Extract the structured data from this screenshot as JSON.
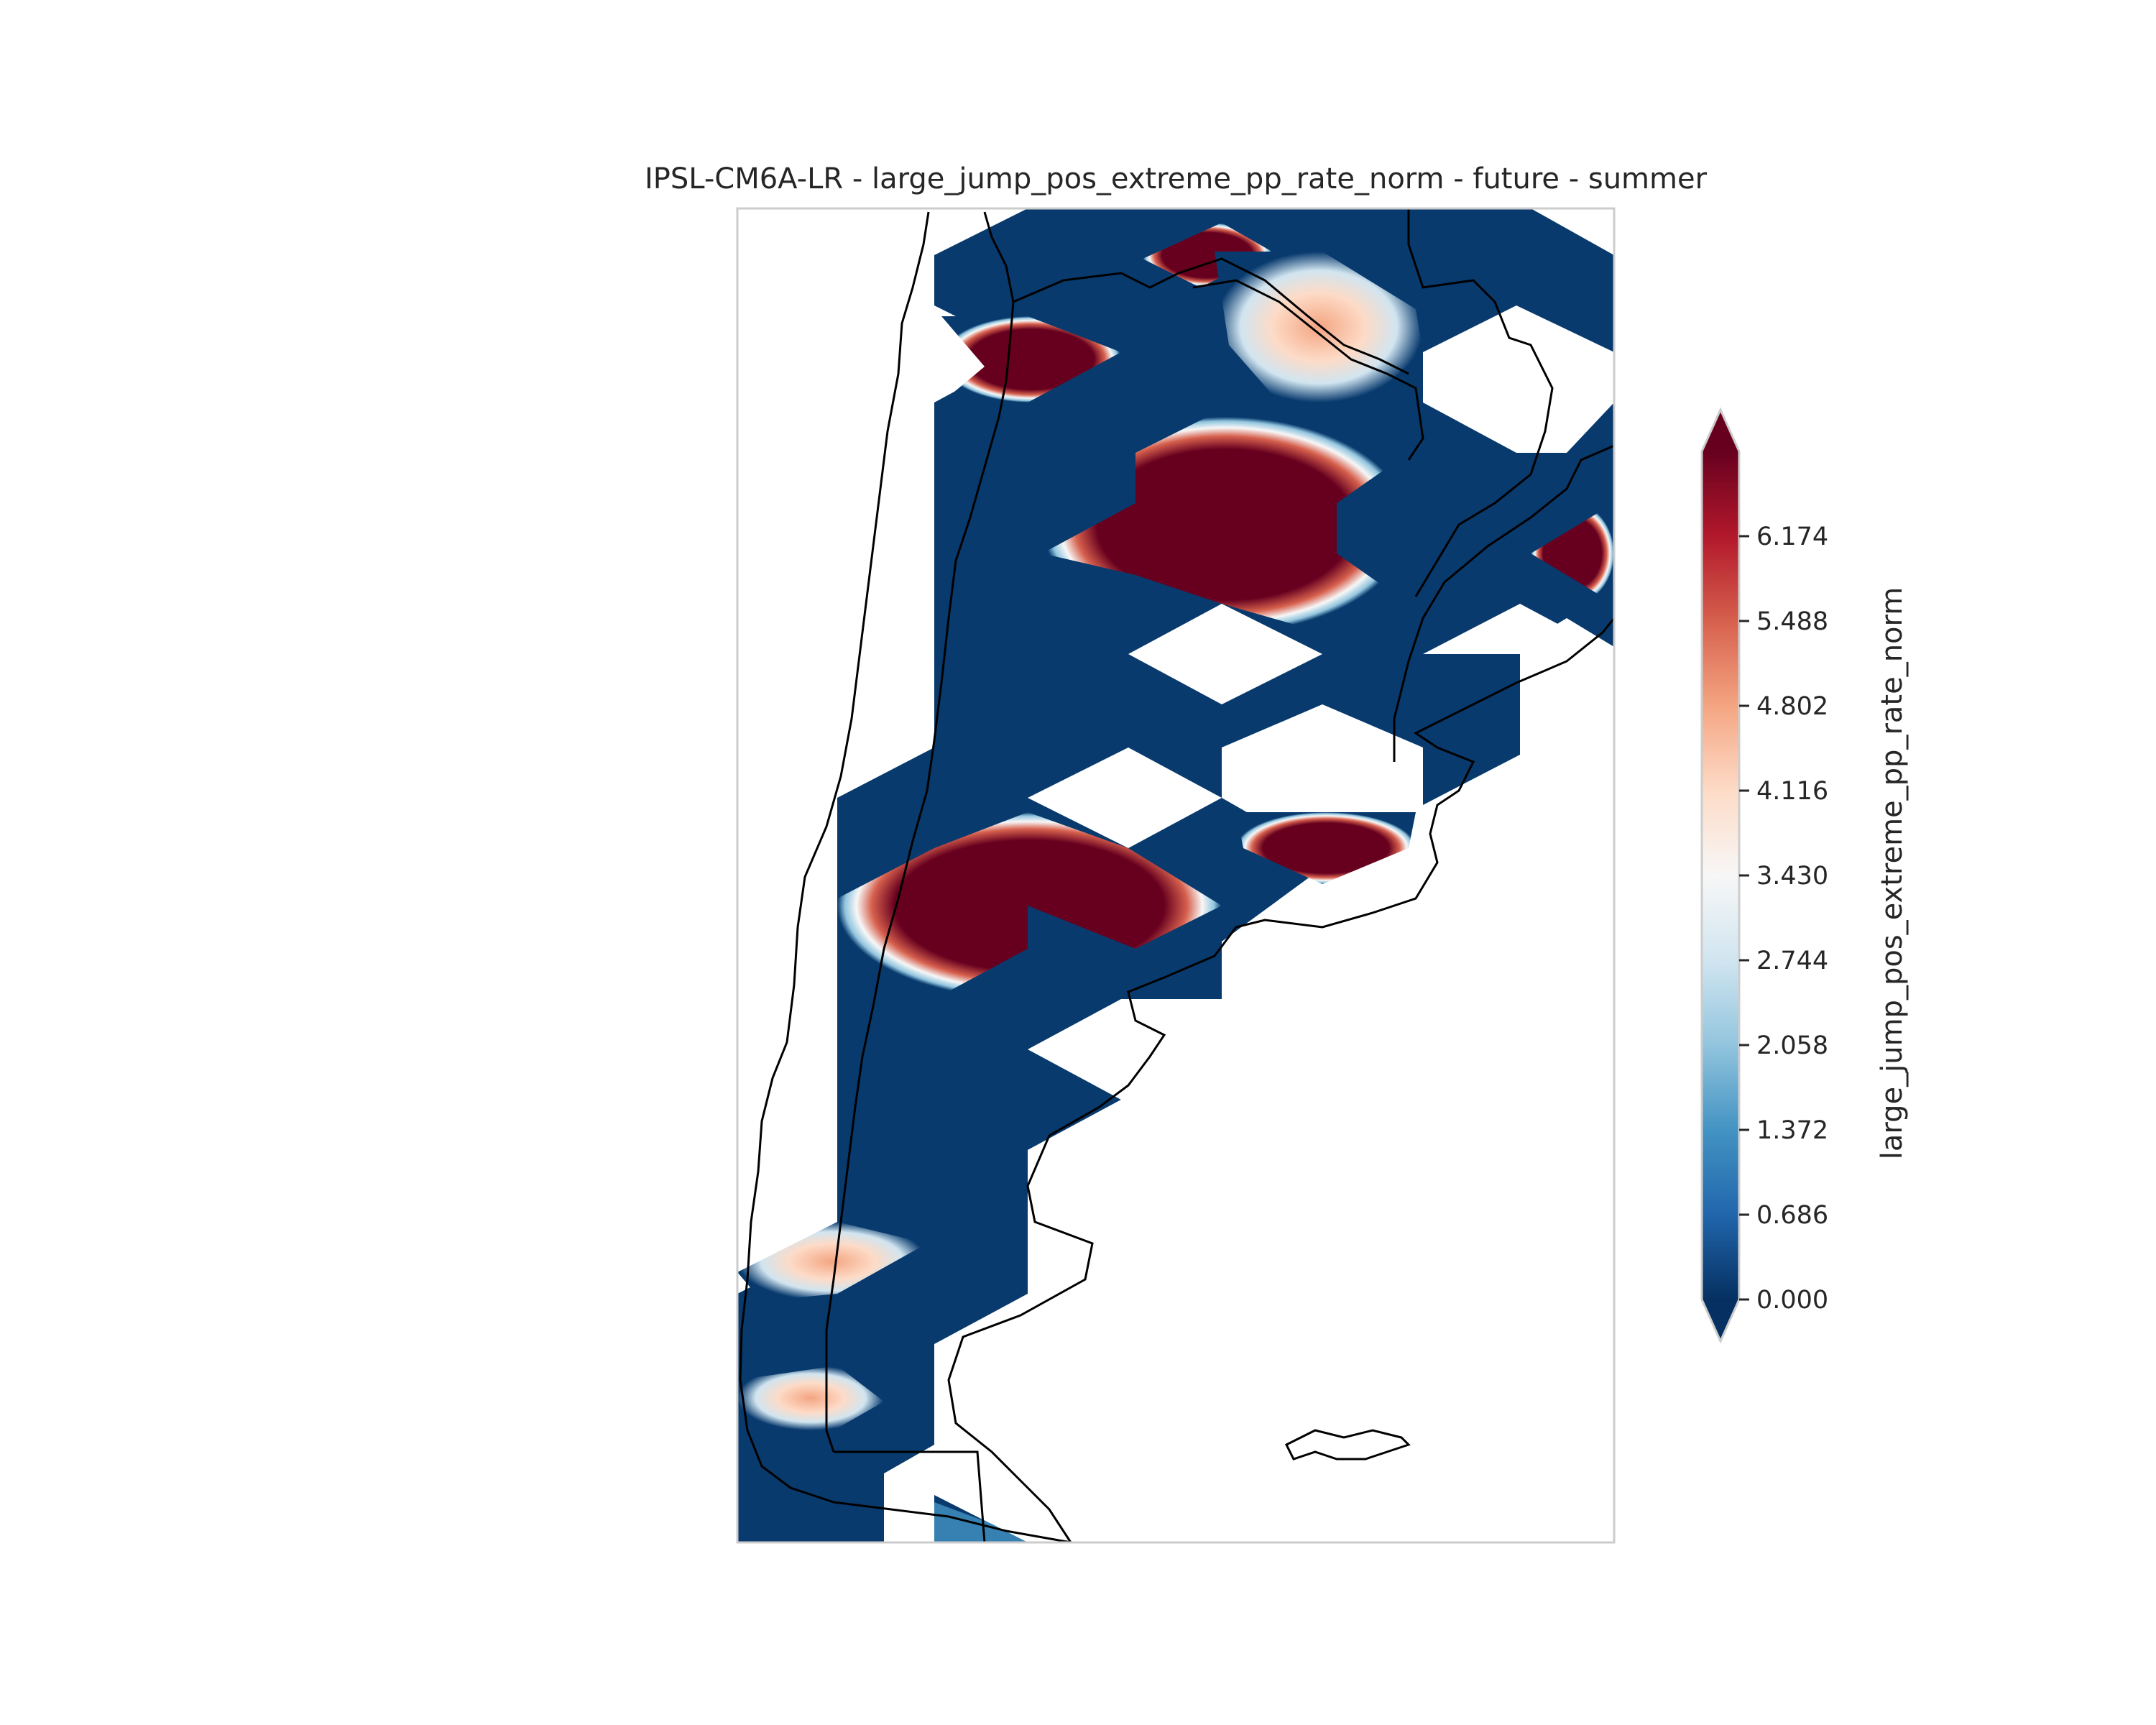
{
  "title": "IPSL-CM6A-LR - large_jump_pos_extreme_pp_rate_norm - future - summer",
  "colorbar": {
    "label": "large_jump_pos_extreme_pp_rate_norm",
    "ticks": [
      "0.000",
      "0.686",
      "1.372",
      "2.058",
      "2.744",
      "3.430",
      "4.116",
      "4.802",
      "5.488",
      "6.174"
    ],
    "range": [
      0,
      6.86
    ],
    "extend": "both",
    "colormap": "RdBu_r",
    "colors": [
      "#053061",
      "#2166ac",
      "#4393c3",
      "#92c5de",
      "#d1e5f0",
      "#f7f7f7",
      "#fddbc7",
      "#f4a582",
      "#d6604d",
      "#b2182b",
      "#67001f"
    ]
  },
  "map": {
    "region": "Southern South America (Argentina / Chile)",
    "features": [
      "coastlines",
      "national borders"
    ]
  },
  "chart_data": {
    "type": "heatmap",
    "title": "IPSL-CM6A-LR - large_jump_pos_extreme_pp_rate_norm - future - summer",
    "colorbar_label": "large_jump_pos_extreme_pp_rate_norm",
    "vmin": 0.0,
    "vmax": 6.86,
    "high_value_regions": [
      {
        "location": "northern Bolivia / Paraguay border",
        "value": 6.86
      },
      {
        "location": "northwest Argentina (Jujuy / Salta)",
        "value": 6.86
      },
      {
        "location": "north-central Argentina (Chaco / Santiago del Estero)",
        "value": 6.86
      },
      {
        "location": "southern Brazil / Uruguay east edge",
        "value": 6.86
      },
      {
        "location": "central-west Argentina (Mendoza / Neuquén)",
        "value": 6.86
      },
      {
        "location": "Buenos Aires coast",
        "value": 6.86
      },
      {
        "location": "southern Chile (Aysén)",
        "value": 5.5
      },
      {
        "location": "southern Chile (Magallanes)",
        "value": 4.8
      }
    ],
    "background_value": 0.0
  }
}
